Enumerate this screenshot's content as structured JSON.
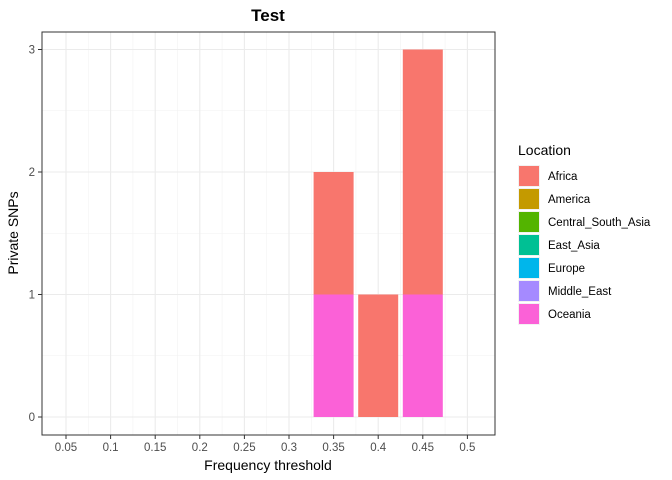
{
  "chart_data": {
    "type": "bar",
    "stacked": true,
    "title": "Test",
    "xlabel": "Frequency threshold",
    "ylabel": "Private SNPs",
    "categories": [
      "0.05",
      "0.1",
      "0.15",
      "0.2",
      "0.25",
      "0.3",
      "0.35",
      "0.4",
      "0.45",
      "0.5"
    ],
    "yticks": [
      "0",
      "1",
      "2",
      "3"
    ],
    "ylim": [
      0,
      3
    ],
    "grid": true,
    "legend_position": "right",
    "legend_title": "Location",
    "legend": [
      {
        "name": "Africa",
        "color": "#F8766D"
      },
      {
        "name": "America",
        "color": "#C49A00"
      },
      {
        "name": "Central_South_Asia",
        "color": "#53B400"
      },
      {
        "name": "East_Asia",
        "color": "#00C094"
      },
      {
        "name": "Europe",
        "color": "#00B6EB"
      },
      {
        "name": "Middle_East",
        "color": "#A58AFF"
      },
      {
        "name": "Oceania",
        "color": "#FB61D7"
      }
    ],
    "series": [
      {
        "name": "Africa",
        "values": [
          0,
          0,
          0,
          0,
          0,
          0,
          1,
          1,
          2,
          0
        ]
      },
      {
        "name": "Oceania",
        "values": [
          0,
          0,
          0,
          0,
          0,
          0,
          1,
          0,
          1,
          0
        ]
      }
    ]
  }
}
